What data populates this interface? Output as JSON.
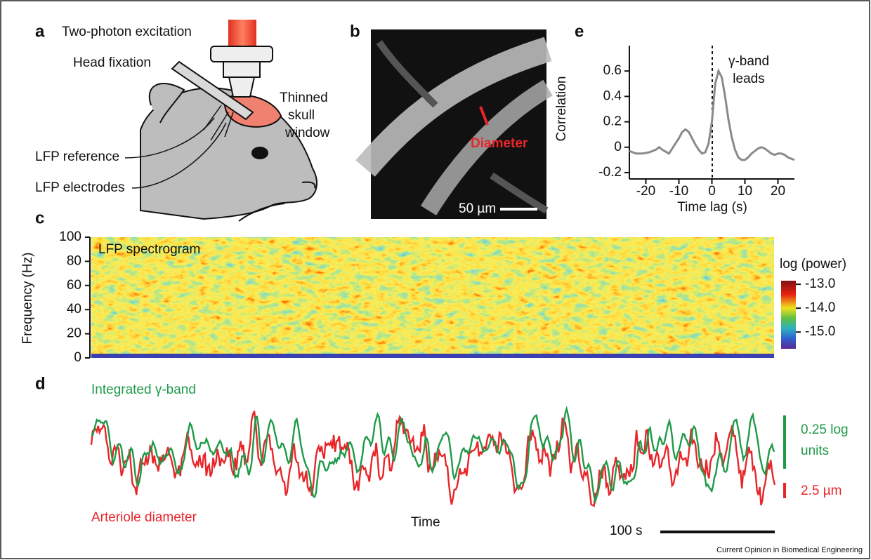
{
  "figure": {
    "panel_labels": [
      "a",
      "b",
      "c",
      "d",
      "e"
    ],
    "a": {
      "excitation": "Two-photon excitation",
      "head_fixation": "Head fixation",
      "window": [
        "Thinned",
        "skull",
        "window"
      ],
      "reference": "LFP reference",
      "electrodes": "LFP electrodes"
    },
    "b": {
      "diameter": "Diameter",
      "scale": "50 µm"
    },
    "c": {
      "ylabel": "Frequency (Hz)",
      "label": "LFP spectrogram",
      "ylim": [
        0,
        100
      ],
      "yticks": [
        0,
        20,
        40,
        60,
        80,
        100
      ],
      "colorbar_title": "log (power)",
      "clim": [
        -15.7,
        -12.85
      ],
      "cticks": [
        {
          "value": -13,
          "label": "-13.0"
        },
        {
          "value": -14,
          "label": "-14.0"
        },
        {
          "value": -15,
          "label": "-15.0"
        }
      ]
    },
    "d": {
      "green_label": "Integrated γ-band",
      "red_label": "Arteriole diameter",
      "xlabel": "Time",
      "time_scale": "100 s",
      "green_scale": [
        "0.25 log",
        "units"
      ],
      "red_scale": "2.5 µm",
      "green_color": "#1e9a48",
      "red_color": "#e8262a"
    },
    "e": {
      "type": "line",
      "ylabel": "Correlation",
      "xlabel": "Time lag (s)",
      "annotation": [
        "γ-band",
        "leads"
      ],
      "x": [
        -25,
        -23,
        -21,
        -19,
        -17,
        -16,
        -15,
        -13,
        -11,
        -10,
        -9,
        -8,
        -7,
        -6,
        -5,
        -4,
        -3,
        -2,
        -1,
        0,
        1,
        2,
        3,
        4,
        5,
        6,
        7,
        8,
        9,
        10,
        11,
        12,
        13,
        14,
        15,
        16,
        17,
        18,
        19,
        20,
        21,
        22,
        23,
        24,
        25
      ],
      "values": [
        -0.03,
        -0.05,
        -0.05,
        -0.04,
        -0.02,
        0.0,
        -0.02,
        -0.05,
        0.03,
        0.07,
        0.12,
        0.14,
        0.12,
        0.07,
        0.02,
        -0.02,
        -0.05,
        -0.04,
        0.03,
        0.2,
        0.5,
        0.6,
        0.55,
        0.4,
        0.22,
        0.08,
        -0.02,
        -0.08,
        -0.1,
        -0.1,
        -0.08,
        -0.05,
        -0.03,
        -0.01,
        0.0,
        -0.01,
        -0.03,
        -0.05,
        -0.06,
        -0.05,
        -0.05,
        -0.06,
        -0.08,
        -0.09,
        -0.1
      ],
      "color": "#8a8a8a",
      "xlim": [
        -25,
        25
      ],
      "ylim": [
        -0.25,
        0.8
      ],
      "xticks": [
        -20,
        -10,
        0,
        10,
        20
      ],
      "yticks": [
        -0.2,
        0,
        0.2,
        0.4,
        0.6
      ]
    },
    "footer": "Current Opinion in Biomedical Engineering"
  }
}
